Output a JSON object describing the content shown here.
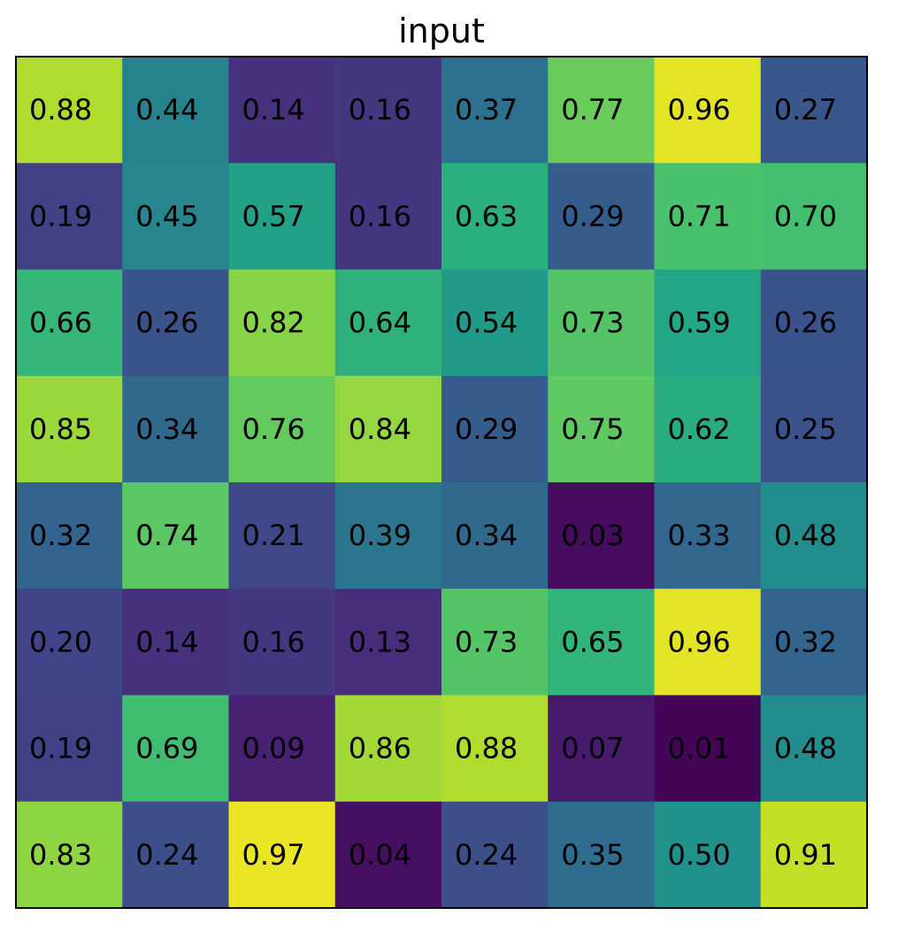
{
  "chart_data": {
    "type": "heatmap",
    "title": "input",
    "colormap": "viridis",
    "value_range": [
      0,
      1
    ],
    "rows": [
      [
        "0.88",
        "0.44",
        "0.14",
        "0.16",
        "0.37",
        "0.77",
        "0.96",
        "0.27"
      ],
      [
        "0.19",
        "0.45",
        "0.57",
        "0.16",
        "0.63",
        "0.29",
        "0.71",
        "0.70"
      ],
      [
        "0.66",
        "0.26",
        "0.82",
        "0.64",
        "0.54",
        "0.73",
        "0.59",
        "0.26"
      ],
      [
        "0.85",
        "0.34",
        "0.76",
        "0.84",
        "0.29",
        "0.75",
        "0.62",
        "0.25"
      ],
      [
        "0.32",
        "0.74",
        "0.21",
        "0.39",
        "0.34",
        "0.03",
        "0.33",
        "0.48"
      ],
      [
        "0.20",
        "0.14",
        "0.16",
        "0.13",
        "0.73",
        "0.65",
        "0.96",
        "0.32"
      ],
      [
        "0.19",
        "0.69",
        "0.09",
        "0.86",
        "0.88",
        "0.07",
        "0.01",
        "0.48"
      ],
      [
        "0.83",
        "0.24",
        "0.97",
        "0.04",
        "0.24",
        "0.35",
        "0.50",
        "0.91"
      ]
    ],
    "grid": false,
    "axis_ticks": false
  }
}
